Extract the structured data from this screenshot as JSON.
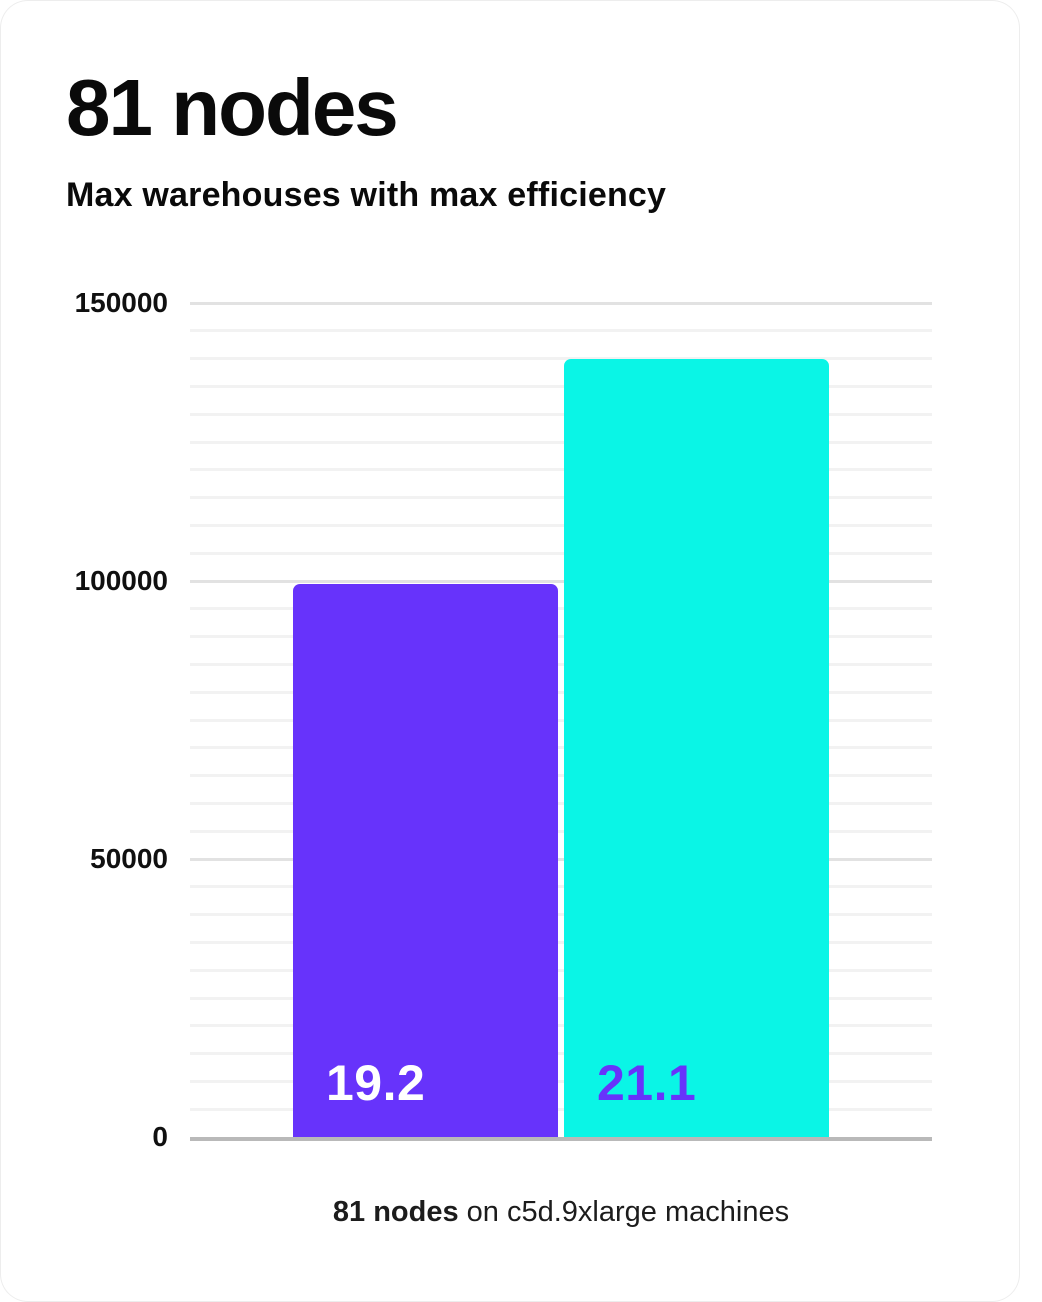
{
  "header": {
    "title": "81 nodes",
    "subtitle": "Max warehouses with max efficiency"
  },
  "caption": {
    "bold": "81 nodes",
    "rest": " on c5d.9xlarge machines"
  },
  "colors": {
    "bar_purple": "#6733fb",
    "bar_cyan": "#0af5e6",
    "label_on_purple": "#ffffff",
    "label_on_cyan": "#6733fb",
    "grid_minor": "#f2f2f2",
    "grid_major": "#e2e2e2",
    "axis_line": "#b9b9b9",
    "text": "#0a0a0a"
  },
  "chart_data": {
    "type": "bar",
    "title": "81 nodes",
    "subtitle": "Max warehouses with max efficiency",
    "caption": "81 nodes on c5d.9xlarge machines",
    "categories": [
      "19.2",
      "21.1"
    ],
    "values": [
      99500,
      140000
    ],
    "bar_colors": [
      "#6733fb",
      "#0af5e6"
    ],
    "bar_label_colors": [
      "#ffffff",
      "#6733fb"
    ],
    "bar_value_labels": [
      "19.2",
      "21.1"
    ],
    "bar_value_label_position": "inside-bottom-left",
    "xlabel": "",
    "ylabel": "",
    "ylim": [
      0,
      150000
    ],
    "yticks": [
      0,
      50000,
      100000,
      150000
    ],
    "ytick_labels": [
      "0",
      "50000",
      "100000",
      "150000"
    ],
    "minor_gridline_step": 5000,
    "grid": "horizontal",
    "legend": "none"
  }
}
